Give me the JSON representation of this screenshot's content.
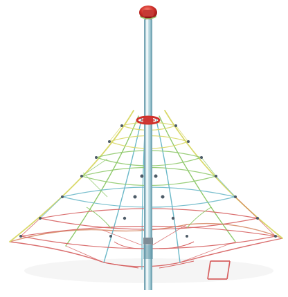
{
  "image": {
    "subject": "rope-net-pyramid-climber",
    "background": "#ffffff",
    "colors": {
      "mast_light": "#eaf4f7",
      "mast_mid": "#a9cfd9",
      "mast_dark": "#5f95a6",
      "cap_red": "#d0302a",
      "cap_dark": "#8d1414",
      "rope_yellow": "#d9d96a",
      "rope_green": "#8fc96b",
      "rope_teal": "#6ab8c8",
      "rope_red": "#d66060",
      "node_dark": "#4d5b67"
    },
    "icons": {
      "cap": "red-top-cap-icon",
      "ring": "red-collar-icon",
      "ladder": "red-ladder-icon"
    }
  }
}
